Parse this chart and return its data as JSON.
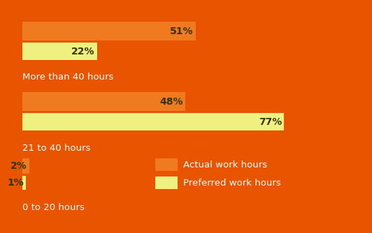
{
  "background_color": "#E85400",
  "bar_color_actual": "#F07A20",
  "bar_color_preferred": "#F0F080",
  "text_color_dark": "#333300",
  "text_color_light": "#FFFFFF",
  "categories": [
    "More than 40 hours",
    "21 to 40 hours",
    "0 to 20 hours"
  ],
  "actual": [
    51,
    48,
    2
  ],
  "preferred": [
    22,
    77,
    1
  ],
  "legend_actual": "Actual work hours",
  "legend_preferred": "Preferred work hours"
}
